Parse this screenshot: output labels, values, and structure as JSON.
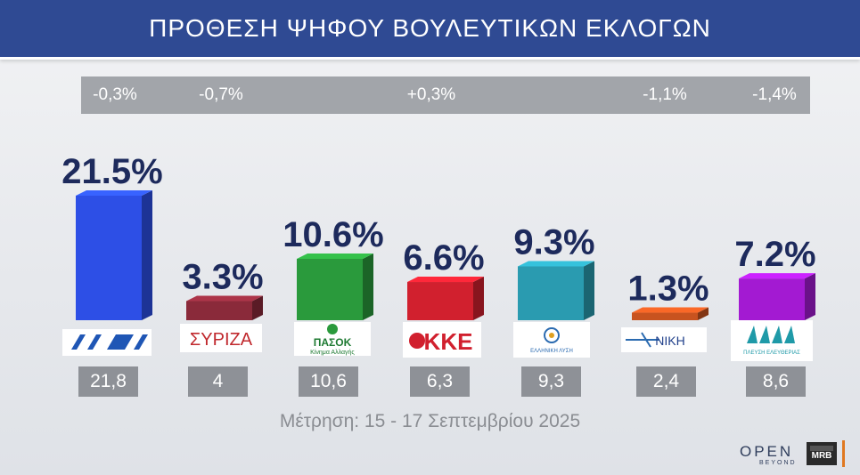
{
  "title": "ΠΡΟΘΕΣΗ ΨΗΦΟΥ ΒΟΥΛΕΥΤΙΚΩΝ ΕΚΛΟΓΩΝ",
  "changes": [
    "-0,3%",
    "-0,7%",
    "+0,3%",
    "-1,1%",
    "-1,4%"
  ],
  "footer_note": "Μέτρηση: 15 - 17 Σεπτεμβρίου 2025",
  "brand": {
    "open": "OPEN",
    "beyond": "BEYOND",
    "mrb": "MRB"
  },
  "logos": {
    "syriza": "ΣΥΡΙΖΑ",
    "pasok": "ΠΑΣΟΚ",
    "pasok_sub": "Κίνημα Αλλαγής",
    "kke": "ΚΚΕ",
    "elliniki": "ΕΛΛΗΝΙΚΗ ΛΥΣΗ",
    "niki": "ΝΙΚΗ",
    "plefsi": "ΠΛΕΥΣΗ ΕΛΕΥΘΕΡΙΑΣ"
  },
  "chart_data": {
    "type": "bar",
    "categories": [
      "ΝΔ",
      "ΣΥΡΙΖΑ",
      "ΠΑΣΟΚ",
      "ΚΚΕ",
      "ΕΛΛΗΝΙΚΗ ΛΥΣΗ",
      "ΝΙΚΗ",
      "ΠΛΕΥΣΗ ΕΛΕΥΘΕΡΙΑΣ"
    ],
    "values": [
      21.5,
      3.3,
      10.6,
      6.6,
      9.3,
      1.3,
      7.2
    ],
    "value_labels": [
      "21.5%",
      "3.3%",
      "10.6%",
      "6.6%",
      "9.3%",
      "1.3%",
      "7.2%"
    ],
    "previous_labels": [
      "21,8",
      "4",
      "10,6",
      "6,3",
      "9,3",
      "2,4",
      "8,6"
    ],
    "colors": [
      "#2d4fe6",
      "#8a2a3a",
      "#2a9a3c",
      "#d1202e",
      "#2a9bb0",
      "#c8531f",
      "#a31ad2"
    ],
    "ylim": [
      0,
      22
    ]
  }
}
